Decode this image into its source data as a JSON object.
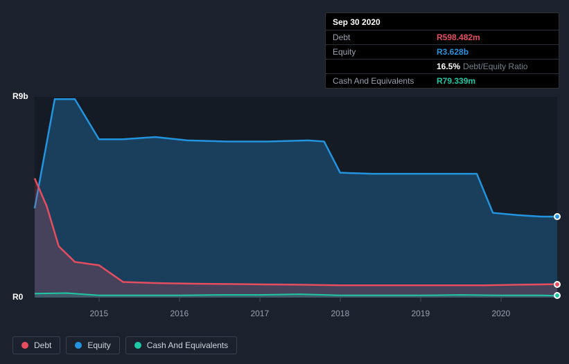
{
  "background_color": "#1b222d",
  "plot_background_color": "#151b24",
  "tooltip": {
    "date": "Sep 30 2020",
    "rows": [
      {
        "label": "Debt",
        "value": "R598.482m",
        "color": "#e64e60"
      },
      {
        "label": "Equity",
        "value": "R3.628b",
        "color": "#2394df"
      },
      {
        "label": "",
        "value": "16.5%",
        "suffix": "Debt/Equity Ratio",
        "color": "#ffffff"
      },
      {
        "label": "Cash And Equivalents",
        "value": "R79.339m",
        "color": "#1ec7a6"
      }
    ]
  },
  "chart": {
    "type": "area-line",
    "ylim": [
      0,
      9
    ],
    "y_ticks": [
      {
        "v": 0,
        "label": "R0"
      },
      {
        "v": 9,
        "label": "R9b"
      }
    ],
    "x_years": [
      2015,
      2016,
      2017,
      2018,
      2019,
      2020
    ],
    "x_range": [
      2014.2,
      2020.7
    ],
    "series": [
      {
        "name": "Equity",
        "color": "#2394df",
        "fill": "rgba(35,148,223,0.30)",
        "width": 2.5,
        "points": [
          [
            2014.2,
            4.0
          ],
          [
            2014.45,
            8.9
          ],
          [
            2014.7,
            8.9
          ],
          [
            2015.0,
            7.1
          ],
          [
            2015.3,
            7.1
          ],
          [
            2015.7,
            7.2
          ],
          [
            2016.1,
            7.05
          ],
          [
            2016.6,
            7.0
          ],
          [
            2017.1,
            7.0
          ],
          [
            2017.6,
            7.05
          ],
          [
            2017.8,
            7.0
          ],
          [
            2018.0,
            5.6
          ],
          [
            2018.4,
            5.55
          ],
          [
            2019.0,
            5.55
          ],
          [
            2019.5,
            5.55
          ],
          [
            2019.7,
            5.55
          ],
          [
            2019.9,
            3.8
          ],
          [
            2020.2,
            3.7
          ],
          [
            2020.5,
            3.63
          ],
          [
            2020.7,
            3.63
          ]
        ],
        "end_dot": true
      },
      {
        "name": "Debt",
        "color": "#e64e60",
        "fill": "rgba(230,78,96,0.22)",
        "width": 2.5,
        "points": [
          [
            2014.2,
            5.35
          ],
          [
            2014.35,
            4.1
          ],
          [
            2014.5,
            2.3
          ],
          [
            2014.7,
            1.6
          ],
          [
            2015.0,
            1.45
          ],
          [
            2015.3,
            0.7
          ],
          [
            2015.7,
            0.65
          ],
          [
            2016.2,
            0.62
          ],
          [
            2016.8,
            0.6
          ],
          [
            2017.4,
            0.58
          ],
          [
            2018.0,
            0.55
          ],
          [
            2018.6,
            0.55
          ],
          [
            2019.2,
            0.55
          ],
          [
            2019.8,
            0.55
          ],
          [
            2020.3,
            0.58
          ],
          [
            2020.7,
            0.6
          ]
        ],
        "end_dot": true
      },
      {
        "name": "Cash And Equivalents",
        "color": "#1ec7a6",
        "fill": "rgba(30,199,166,0.20)",
        "width": 2,
        "points": [
          [
            2014.2,
            0.18
          ],
          [
            2014.6,
            0.2
          ],
          [
            2015.0,
            0.1
          ],
          [
            2015.5,
            0.1
          ],
          [
            2016.0,
            0.1
          ],
          [
            2016.5,
            0.12
          ],
          [
            2017.0,
            0.12
          ],
          [
            2017.5,
            0.15
          ],
          [
            2018.0,
            0.1
          ],
          [
            2018.5,
            0.1
          ],
          [
            2019.0,
            0.1
          ],
          [
            2019.5,
            0.12
          ],
          [
            2020.0,
            0.1
          ],
          [
            2020.5,
            0.1
          ],
          [
            2020.7,
            0.08
          ]
        ],
        "end_dot": true
      }
    ]
  },
  "legend": [
    {
      "label": "Debt",
      "color": "#e64e60"
    },
    {
      "label": "Equity",
      "color": "#2394df"
    },
    {
      "label": "Cash And Equivalents",
      "color": "#1ec7a6"
    }
  ]
}
